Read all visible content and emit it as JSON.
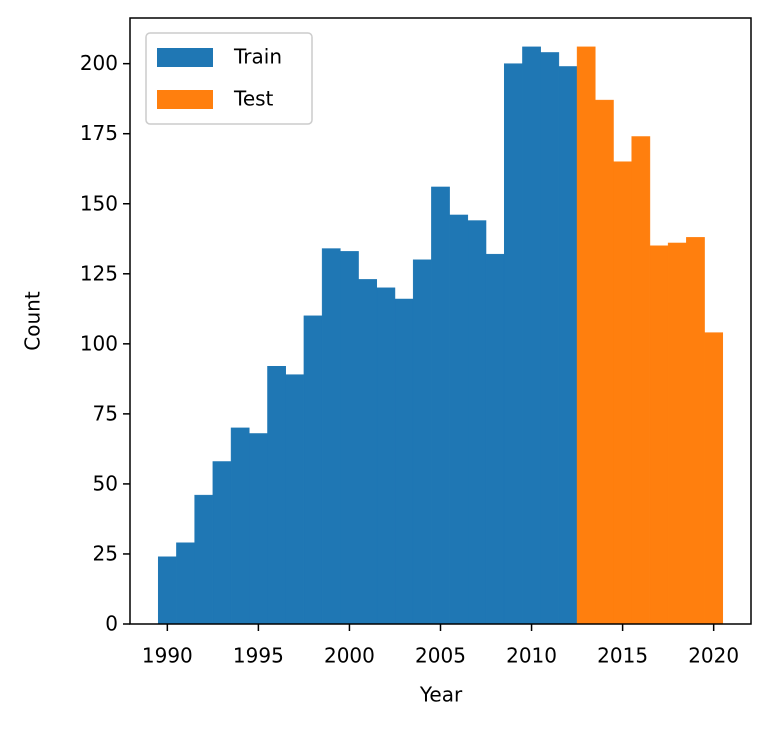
{
  "chart_data": {
    "type": "histogram",
    "xlabel": "Year",
    "ylabel": "Count",
    "series": [
      {
        "name": "Train",
        "color": "#1f77b4",
        "bins": [
          1989.5,
          1990.5,
          1991.5,
          1992.5,
          1993.5,
          1994.5,
          1995.5,
          1996.5,
          1997.5,
          1998.5,
          1999.5,
          2000.5,
          2001.5,
          2002.5,
          2003.5,
          2004.5,
          2005.5,
          2006.5,
          2007.5,
          2008.5,
          2009.5,
          2010.5,
          2011.5,
          2012.5
        ],
        "values": [
          24,
          29,
          46,
          58,
          70,
          68,
          92,
          89,
          110,
          134,
          133,
          123,
          120,
          116,
          130,
          156,
          146,
          144,
          132,
          200,
          206,
          204,
          199
        ]
      },
      {
        "name": "Test",
        "color": "#ff7f0e",
        "bins": [
          2012.5,
          2013.5,
          2014.5,
          2015.5,
          2016.5,
          2017.5,
          2018.5,
          2019.5,
          2020.5
        ],
        "values": [
          206,
          187,
          165,
          174,
          135,
          136,
          138,
          104
        ]
      }
    ],
    "xlim": [
      1987.95,
      2022.05
    ],
    "xticks": [
      1990,
      1995,
      2000,
      2005,
      2010,
      2015,
      2020
    ],
    "ylim": [
      0,
      216.3
    ],
    "yticks": [
      0,
      25,
      50,
      75,
      100,
      125,
      150,
      175,
      200
    ],
    "legend": "upper left",
    "grid": false
  }
}
